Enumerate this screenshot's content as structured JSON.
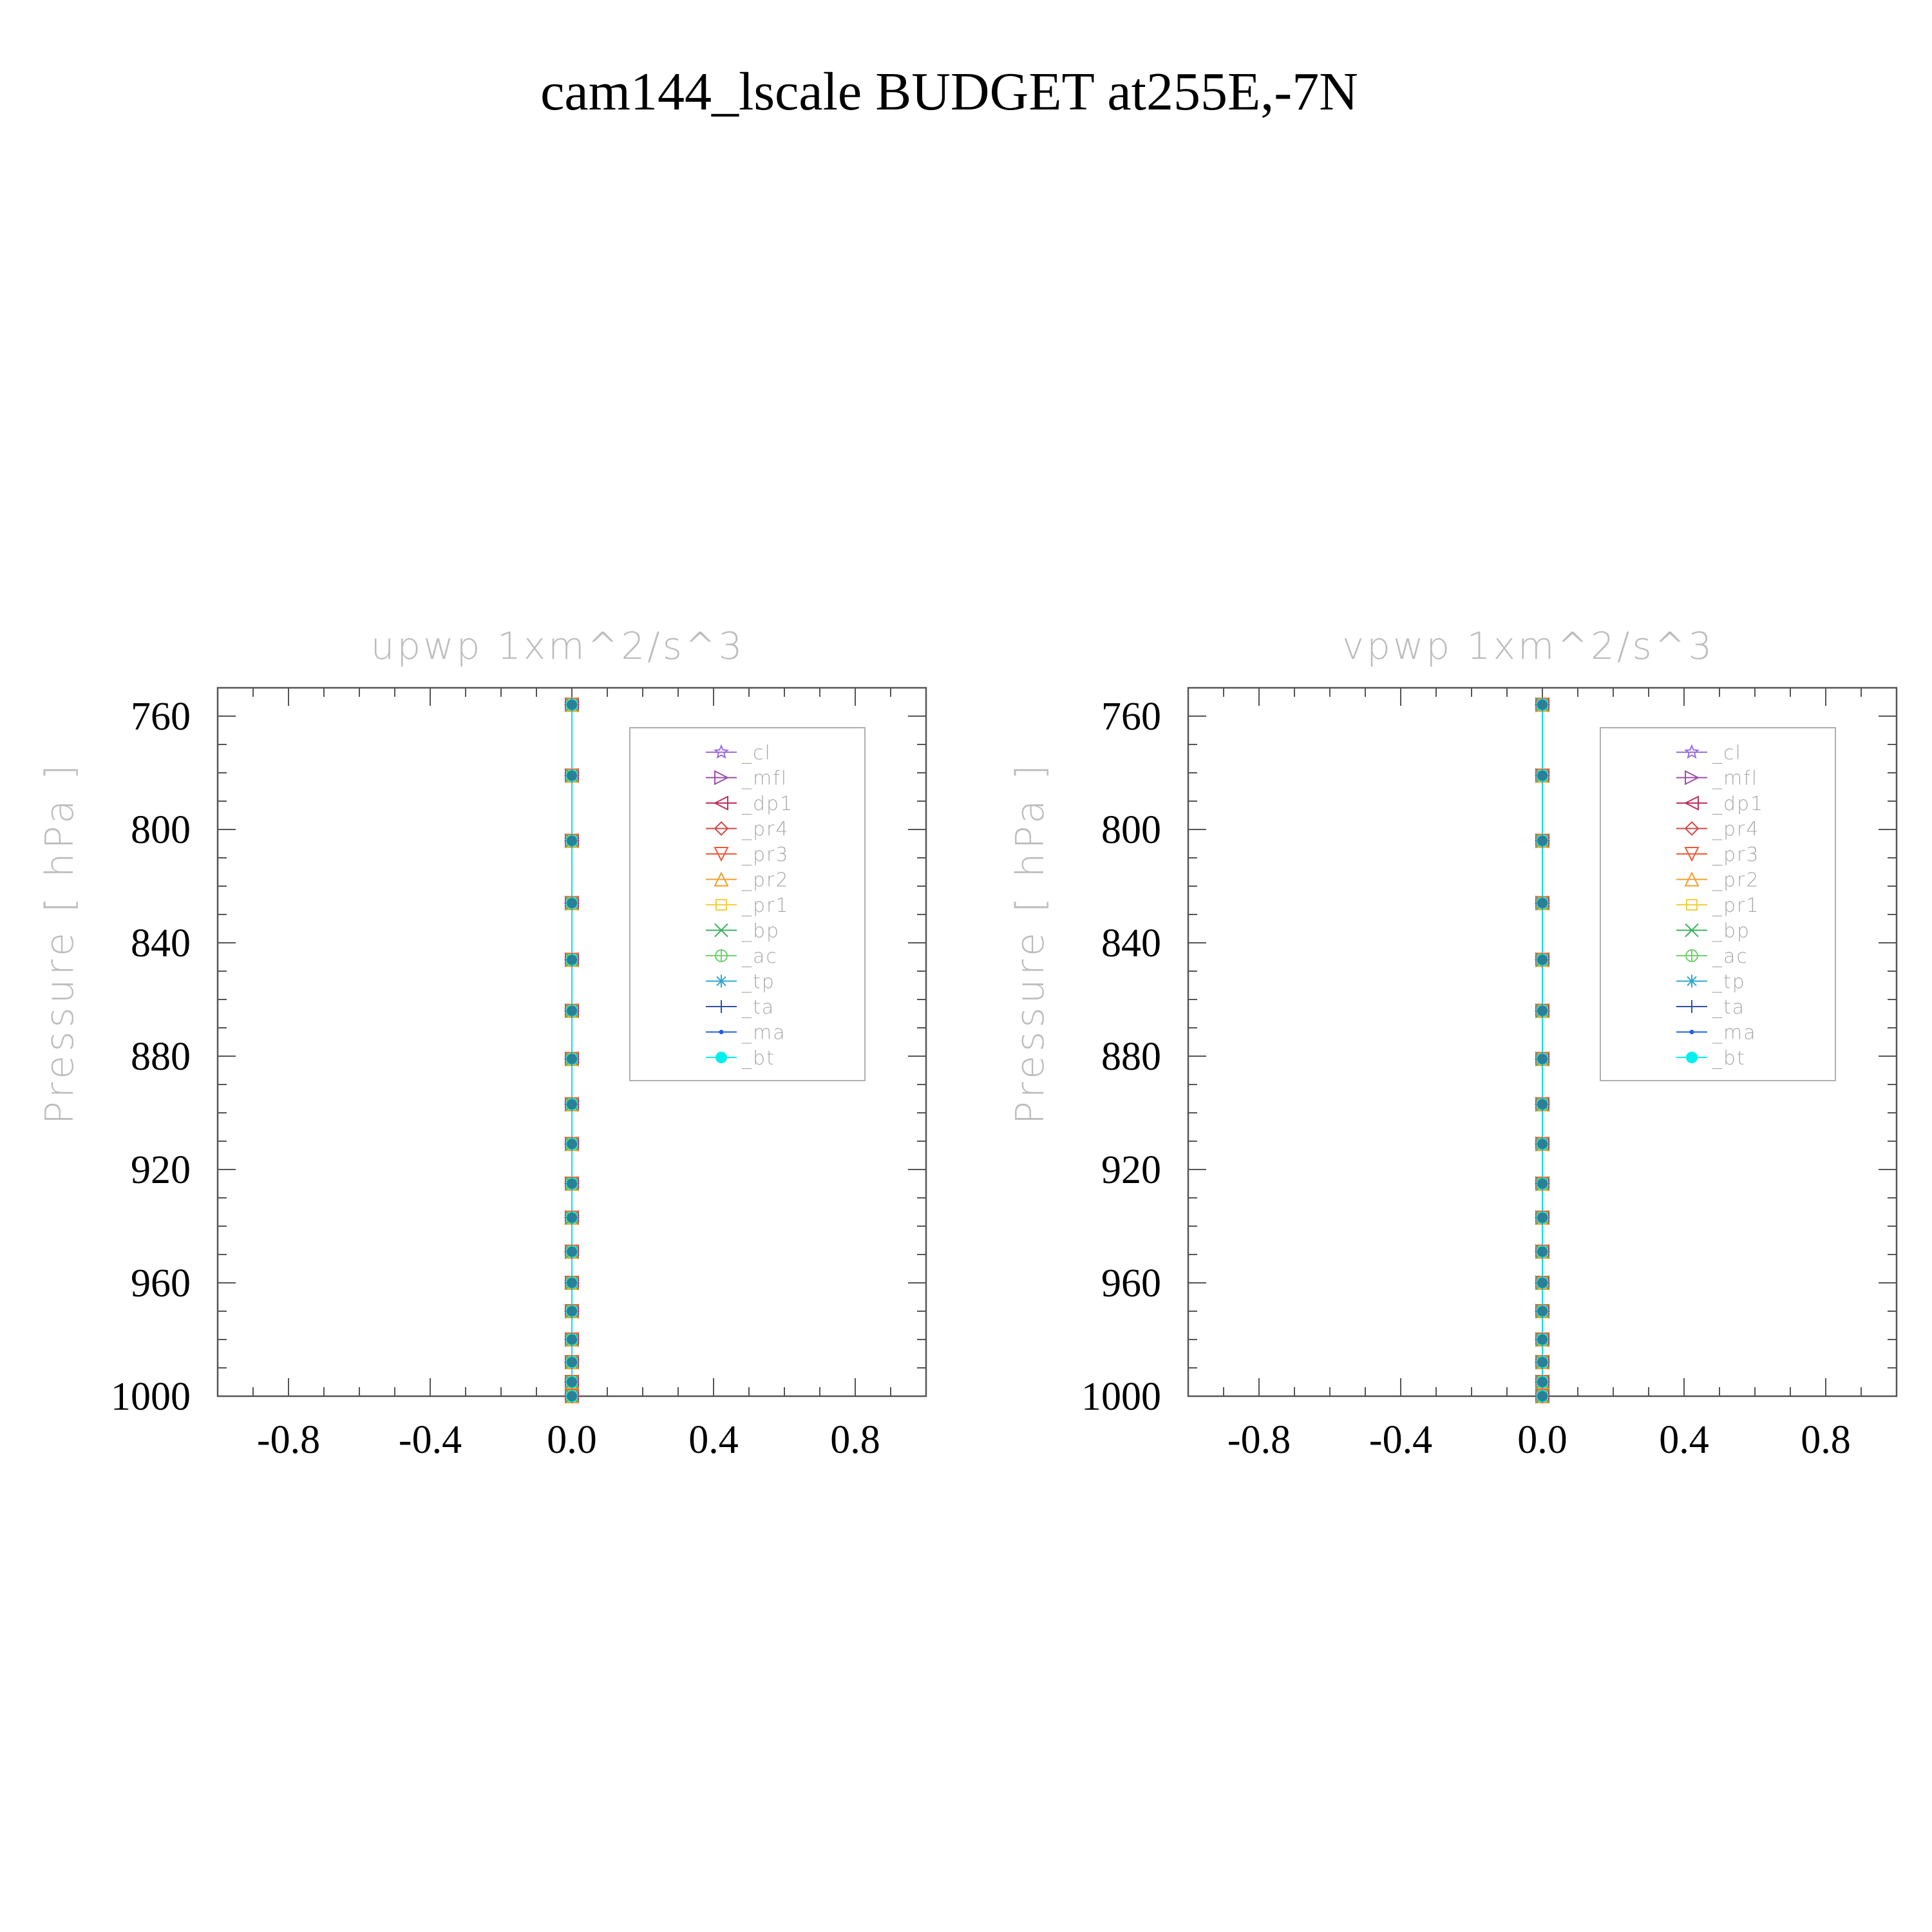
{
  "figure": {
    "title": "cam144_lscale  BUDGET at255E,-7N"
  },
  "colors": {
    "axis": "#555555",
    "tick_label": "#000000",
    "faint_label": "#bdbdbd",
    "legend_text": "#a8a8a8"
  },
  "chart_data": [
    {
      "type": "line",
      "title": "upwp    1xm^2/s^3",
      "ylabel": "Pressure  [ hPa ]",
      "xlabel": "",
      "xlim": [
        -1.0,
        1.0
      ],
      "ylim": [
        1000,
        750
      ],
      "y_reversed": true,
      "xticks": [
        -0.8,
        -0.4,
        0.0,
        0.4,
        0.8
      ],
      "xtick_labels": [
        "-0.8",
        "-0.4",
        "0.0",
        "0.4",
        "0.8"
      ],
      "yticks": [
        760,
        800,
        840,
        880,
        920,
        960,
        1000
      ],
      "ytick_labels": [
        "760",
        "800",
        "840",
        "880",
        "920",
        "960",
        "1000"
      ],
      "grid": false,
      "legend_position": "upper-right",
      "levels": [
        756,
        781,
        804,
        826,
        846,
        864,
        881,
        897,
        911,
        925,
        937,
        949,
        960,
        970,
        980,
        988,
        995,
        1000
      ],
      "series": [
        {
          "name": "_cl",
          "color": "#9a6fd8",
          "marker": "star",
          "values": [
            0,
            0,
            0,
            0,
            0,
            0,
            0,
            0,
            0,
            0,
            0,
            0,
            0,
            0,
            0,
            0,
            0,
            0
          ]
        },
        {
          "name": "_mfl",
          "color": "#9b4fa8",
          "marker": "triangle-right",
          "values": [
            0,
            0,
            0,
            0,
            0,
            0,
            0,
            0,
            0,
            0,
            0,
            0,
            0,
            0,
            0,
            0,
            0,
            0
          ]
        },
        {
          "name": "_dp1",
          "color": "#c0305a",
          "marker": "triangle-left",
          "values": [
            0,
            0,
            0,
            0,
            0,
            0,
            0,
            0,
            0,
            0,
            0,
            0,
            0,
            0,
            0,
            0,
            0,
            0
          ]
        },
        {
          "name": "_pr4",
          "color": "#d04a4a",
          "marker": "diamond",
          "values": [
            0,
            0,
            0,
            0,
            0,
            0,
            0,
            0,
            0,
            0,
            0,
            0,
            0,
            0,
            0,
            0,
            0,
            0
          ]
        },
        {
          "name": "_pr3",
          "color": "#ee5a3a",
          "marker": "triangle-down",
          "values": [
            0,
            0,
            0,
            0,
            0,
            0,
            0,
            0,
            0,
            0,
            0,
            0,
            0,
            0,
            0,
            0,
            0,
            0
          ]
        },
        {
          "name": "_pr2",
          "color": "#f0a030",
          "marker": "triangle-up",
          "values": [
            0,
            0,
            0,
            0,
            0,
            0,
            0,
            0,
            0,
            0,
            0,
            0,
            0,
            0,
            0,
            0,
            0,
            0
          ]
        },
        {
          "name": "_pr1",
          "color": "#f0d040",
          "marker": "square",
          "values": [
            0,
            0,
            0,
            0,
            0,
            0,
            0,
            0,
            0,
            0,
            0,
            0,
            0,
            0,
            0,
            0,
            0,
            0
          ]
        },
        {
          "name": "_bp",
          "color": "#40b060",
          "marker": "x",
          "values": [
            0,
            0,
            0,
            0,
            0,
            0,
            0,
            0,
            0,
            0,
            0,
            0,
            0,
            0,
            0,
            0,
            0,
            0
          ]
        },
        {
          "name": "_ac",
          "color": "#70d070",
          "marker": "circle-cross",
          "values": [
            0,
            0,
            0,
            0,
            0,
            0,
            0,
            0,
            0,
            0,
            0,
            0,
            0,
            0,
            0,
            0,
            0,
            0
          ]
        },
        {
          "name": "_tp",
          "color": "#30a8d0",
          "marker": "asterisk",
          "values": [
            0,
            0,
            0,
            0,
            0,
            0,
            0,
            0,
            0,
            0,
            0,
            0,
            0,
            0,
            0,
            0,
            0,
            0
          ]
        },
        {
          "name": "_ta",
          "color": "#3050a0",
          "marker": "plus",
          "values": [
            0,
            0,
            0,
            0,
            0,
            0,
            0,
            0,
            0,
            0,
            0,
            0,
            0,
            0,
            0,
            0,
            0,
            0
          ]
        },
        {
          "name": "_ma",
          "color": "#2060e0",
          "marker": "dot",
          "values": [
            0,
            0,
            0,
            0,
            0,
            0,
            0,
            0,
            0,
            0,
            0,
            0,
            0,
            0,
            0,
            0,
            0,
            0
          ]
        },
        {
          "name": "_bt",
          "color": "#00f0f0",
          "marker": "filled-circle",
          "values": [
            0,
            0,
            0,
            0,
            0,
            0,
            0,
            0,
            0,
            0,
            0,
            0,
            0,
            0,
            0,
            0,
            0,
            0
          ]
        }
      ]
    },
    {
      "type": "line",
      "title": "vpwp    1xm^2/s^3",
      "ylabel": "Pressure  [ hPa ]",
      "xlabel": "",
      "xlim": [
        -1.0,
        1.0
      ],
      "ylim": [
        1000,
        750
      ],
      "y_reversed": true,
      "xticks": [
        -0.8,
        -0.4,
        0.0,
        0.4,
        0.8
      ],
      "xtick_labels": [
        "-0.8",
        "-0.4",
        "0.0",
        "0.4",
        "0.8"
      ],
      "yticks": [
        760,
        800,
        840,
        880,
        920,
        960,
        1000
      ],
      "ytick_labels": [
        "760",
        "800",
        "840",
        "880",
        "920",
        "960",
        "1000"
      ],
      "grid": false,
      "legend_position": "upper-right",
      "levels": [
        756,
        781,
        804,
        826,
        846,
        864,
        881,
        897,
        911,
        925,
        937,
        949,
        960,
        970,
        980,
        988,
        995,
        1000
      ],
      "series": [
        {
          "name": "_cl",
          "color": "#9a6fd8",
          "marker": "star",
          "values": [
            0,
            0,
            0,
            0,
            0,
            0,
            0,
            0,
            0,
            0,
            0,
            0,
            0,
            0,
            0,
            0,
            0,
            0
          ]
        },
        {
          "name": "_mfl",
          "color": "#9b4fa8",
          "marker": "triangle-right",
          "values": [
            0,
            0,
            0,
            0,
            0,
            0,
            0,
            0,
            0,
            0,
            0,
            0,
            0,
            0,
            0,
            0,
            0,
            0
          ]
        },
        {
          "name": "_dp1",
          "color": "#c0305a",
          "marker": "triangle-left",
          "values": [
            0,
            0,
            0,
            0,
            0,
            0,
            0,
            0,
            0,
            0,
            0,
            0,
            0,
            0,
            0,
            0,
            0,
            0
          ]
        },
        {
          "name": "_pr4",
          "color": "#d04a4a",
          "marker": "diamond",
          "values": [
            0,
            0,
            0,
            0,
            0,
            0,
            0,
            0,
            0,
            0,
            0,
            0,
            0,
            0,
            0,
            0,
            0,
            0
          ]
        },
        {
          "name": "_pr3",
          "color": "#ee5a3a",
          "marker": "triangle-down",
          "values": [
            0,
            0,
            0,
            0,
            0,
            0,
            0,
            0,
            0,
            0,
            0,
            0,
            0,
            0,
            0,
            0,
            0,
            0
          ]
        },
        {
          "name": "_pr2",
          "color": "#f0a030",
          "marker": "triangle-up",
          "values": [
            0,
            0,
            0,
            0,
            0,
            0,
            0,
            0,
            0,
            0,
            0,
            0,
            0,
            0,
            0,
            0,
            0,
            0
          ]
        },
        {
          "name": "_pr1",
          "color": "#f0d040",
          "marker": "square",
          "values": [
            0,
            0,
            0,
            0,
            0,
            0,
            0,
            0,
            0,
            0,
            0,
            0,
            0,
            0,
            0,
            0,
            0,
            0
          ]
        },
        {
          "name": "_bp",
          "color": "#40b060",
          "marker": "x",
          "values": [
            0,
            0,
            0,
            0,
            0,
            0,
            0,
            0,
            0,
            0,
            0,
            0,
            0,
            0,
            0,
            0,
            0,
            0
          ]
        },
        {
          "name": "_ac",
          "color": "#70d070",
          "marker": "circle-cross",
          "values": [
            0,
            0,
            0,
            0,
            0,
            0,
            0,
            0,
            0,
            0,
            0,
            0,
            0,
            0,
            0,
            0,
            0,
            0
          ]
        },
        {
          "name": "_tp",
          "color": "#30a8d0",
          "marker": "asterisk",
          "values": [
            0,
            0,
            0,
            0,
            0,
            0,
            0,
            0,
            0,
            0,
            0,
            0,
            0,
            0,
            0,
            0,
            0,
            0
          ]
        },
        {
          "name": "_ta",
          "color": "#3050a0",
          "marker": "plus",
          "values": [
            0,
            0,
            0,
            0,
            0,
            0,
            0,
            0,
            0,
            0,
            0,
            0,
            0,
            0,
            0,
            0,
            0,
            0
          ]
        },
        {
          "name": "_ma",
          "color": "#2060e0",
          "marker": "dot",
          "values": [
            0,
            0,
            0,
            0,
            0,
            0,
            0,
            0,
            0,
            0,
            0,
            0,
            0,
            0,
            0,
            0,
            0,
            0
          ]
        },
        {
          "name": "_bt",
          "color": "#00f0f0",
          "marker": "filled-circle",
          "values": [
            0,
            0,
            0,
            0,
            0,
            0,
            0,
            0,
            0,
            0,
            0,
            0,
            0,
            0,
            0,
            0,
            0,
            0
          ]
        }
      ]
    }
  ]
}
